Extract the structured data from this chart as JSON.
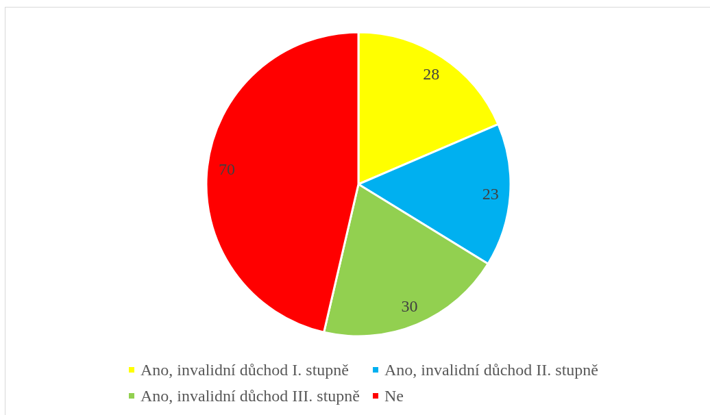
{
  "chart_data": {
    "type": "pie",
    "categories": [
      "Ano, invalidní důchod I. stupně",
      "Ano, invalidní důchod II. stupně",
      "Ano, invalidní důchod III. stupně",
      "Ne"
    ],
    "values": [
      28,
      23,
      30,
      70
    ],
    "colors": [
      "#ffff00",
      "#00b0f0",
      "#92d050",
      "#ff0000"
    ],
    "legend": "bottom",
    "data_labels": true
  }
}
